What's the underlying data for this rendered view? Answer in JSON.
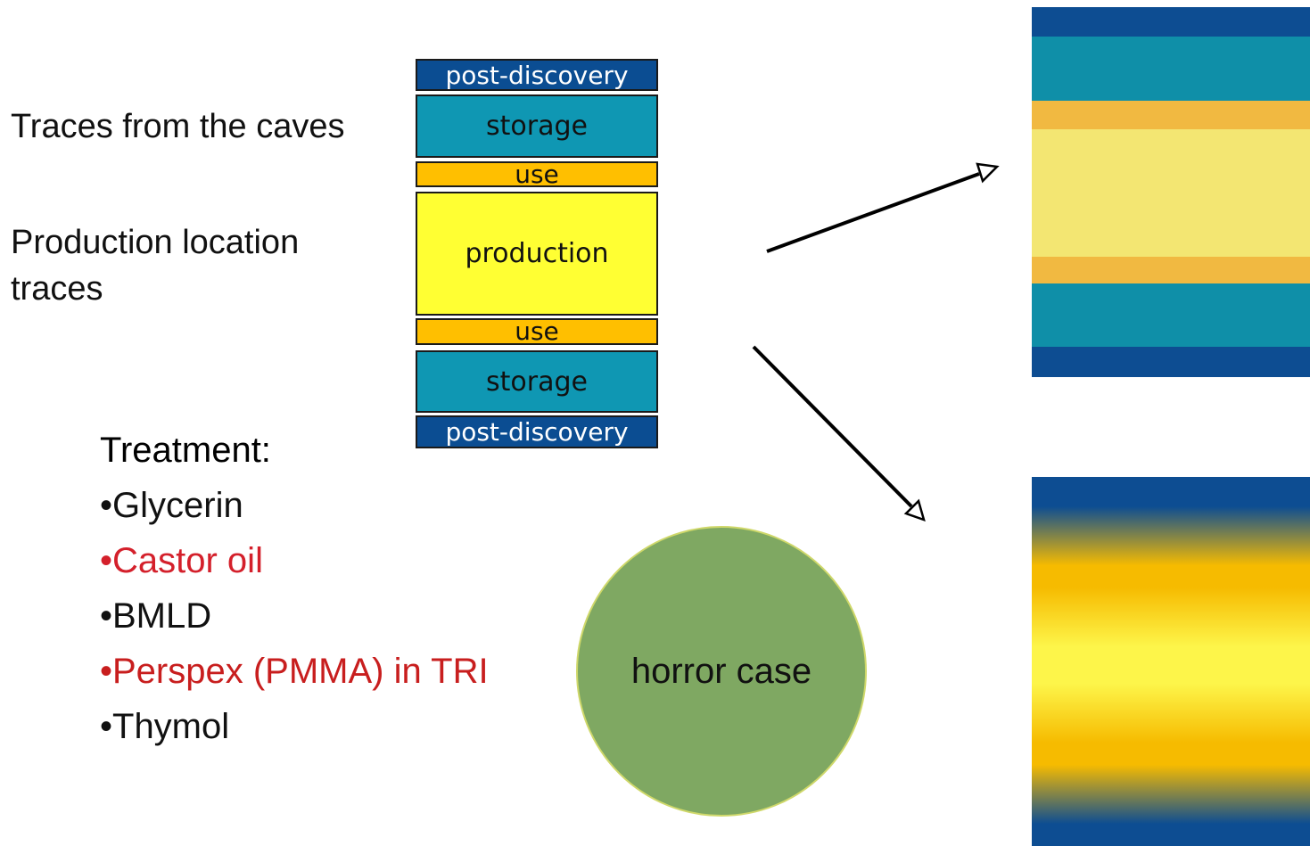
{
  "labels": {
    "caves": "Traces from the caves",
    "production_line1": "Production location",
    "production_line2": "traces"
  },
  "layers": [
    {
      "text": "post-discovery",
      "bg": "#0b4d92",
      "fg": "#ffffff"
    },
    {
      "text": "storage",
      "bg": "#0f97b3",
      "fg": "#111111"
    },
    {
      "text": "use",
      "bg": "#ffbf00",
      "fg": "#111111"
    },
    {
      "text": "production",
      "bg": "#ffff33",
      "fg": "#111111"
    },
    {
      "text": "use",
      "bg": "#ffbf00",
      "fg": "#111111"
    },
    {
      "text": "storage",
      "bg": "#0f97b3",
      "fg": "#111111"
    },
    {
      "text": "post-discovery",
      "bg": "#0b4d92",
      "fg": "#ffffff"
    }
  ],
  "treatment": {
    "heading": "Treatment:",
    "items": [
      {
        "text": "•Glycerin",
        "color": "#111111"
      },
      {
        "text": "•Castor oil",
        "color": "#d4202b"
      },
      {
        "text": "•BMLD",
        "color": "#111111"
      },
      {
        "text": "•Perspex (PMMA) in TRI",
        "color": "#c81e1e"
      },
      {
        "text": "•Thymol",
        "color": "#111111"
      }
    ]
  },
  "horror": {
    "label": "horror case",
    "fill": "#7fa862"
  },
  "panels": {
    "sharp": [
      {
        "name": "post-discovery",
        "color": "#0d4d92"
      },
      {
        "name": "storage",
        "color": "#0f8fa8"
      },
      {
        "name": "use",
        "color": "#f1b941"
      },
      {
        "name": "production",
        "color": "#f3e672"
      },
      {
        "name": "use",
        "color": "#f1b941"
      },
      {
        "name": "storage",
        "color": "#0f8fa8"
      },
      {
        "name": "post-discovery",
        "color": "#0d4d92"
      }
    ],
    "smeared": {
      "blue": "#0d4d92",
      "amber": "#f6bb00",
      "yellow": "#fdf54a"
    }
  }
}
